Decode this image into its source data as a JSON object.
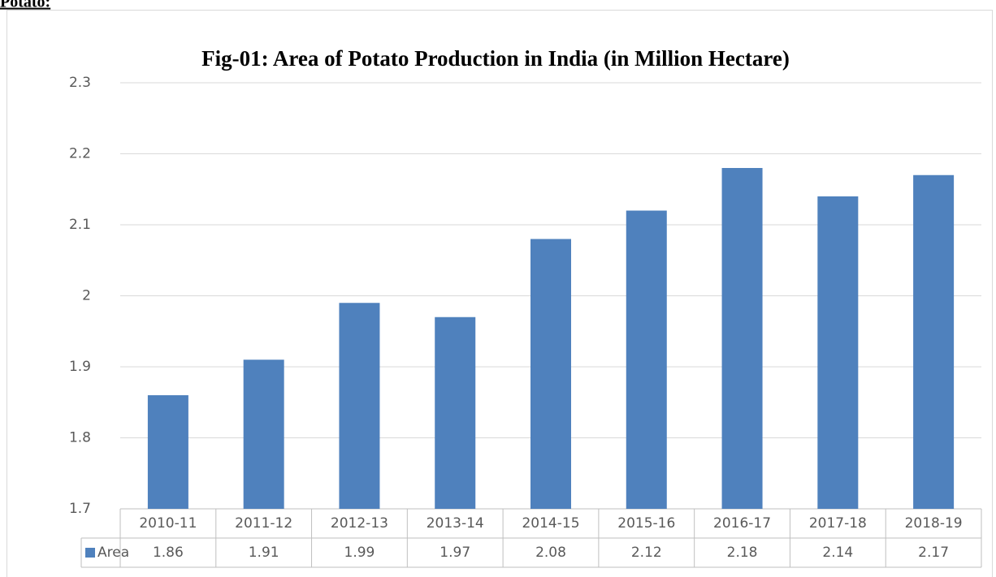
{
  "heading": "Potato:",
  "chart_data": {
    "type": "bar",
    "title": "Fig-01: Area of Potato Production in India (in Million Hectare)",
    "categories": [
      "2010-11",
      "2011-12",
      "2012-13",
      "2013-14",
      "2014-15",
      "2015-16",
      "2016-17",
      "2017-18",
      "2018-19"
    ],
    "series": [
      {
        "name": "Area",
        "color": "#4f81bd",
        "values": [
          1.86,
          1.91,
          1.99,
          1.97,
          2.08,
          2.12,
          2.18,
          2.14,
          2.17
        ]
      }
    ],
    "ylim": [
      1.7,
      2.3
    ],
    "yticks": [
      1.7,
      1.8,
      1.9,
      2,
      2.1,
      2.2,
      2.3
    ],
    "grid": true,
    "data_table": true
  }
}
